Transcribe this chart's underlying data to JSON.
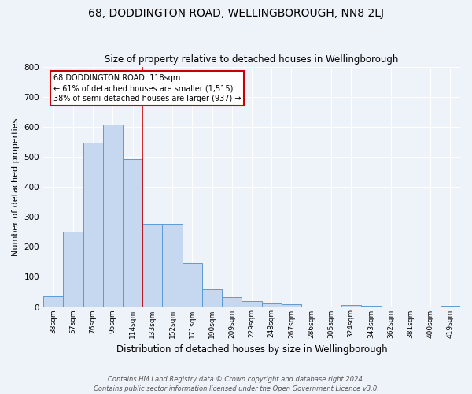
{
  "title": "68, DODDINGTON ROAD, WELLINGBOROUGH, NN8 2LJ",
  "subtitle": "Size of property relative to detached houses in Wellingborough",
  "xlabel": "Distribution of detached houses by size in Wellingborough",
  "ylabel": "Number of detached properties",
  "categories": [
    "38sqm",
    "57sqm",
    "76sqm",
    "95sqm",
    "114sqm",
    "133sqm",
    "152sqm",
    "171sqm",
    "190sqm",
    "209sqm",
    "229sqm",
    "248sqm",
    "267sqm",
    "286sqm",
    "305sqm",
    "324sqm",
    "343sqm",
    "362sqm",
    "381sqm",
    "400sqm",
    "419sqm"
  ],
  "values": [
    35,
    250,
    548,
    607,
    493,
    278,
    278,
    145,
    60,
    33,
    20,
    13,
    9,
    1,
    1,
    6,
    4,
    2,
    1,
    1,
    5
  ],
  "bar_color": "#c5d8f0",
  "bar_edge_color": "#5b9bd5",
  "vline_color": "#cc0000",
  "annotation_title": "68 DODDINGTON ROAD: 118sqm",
  "annotation_line1": "← 61% of detached houses are smaller (1,515)",
  "annotation_line2": "38% of semi-detached houses are larger (937) →",
  "annotation_box_color": "#ffffff",
  "annotation_box_edge_color": "#cc0000",
  "footer_line1": "Contains HM Land Registry data © Crown copyright and database right 2024.",
  "footer_line2": "Contains public sector information licensed under the Open Government Licence v3.0.",
  "ylim": [
    0,
    800
  ],
  "yticks": [
    0,
    100,
    200,
    300,
    400,
    500,
    600,
    700,
    800
  ],
  "background_color": "#eef2f9",
  "grid_color": "#ffffff",
  "title_fontsize": 10,
  "subtitle_fontsize": 8.5,
  "ylabel_fontsize": 8,
  "xlabel_fontsize": 8.5
}
